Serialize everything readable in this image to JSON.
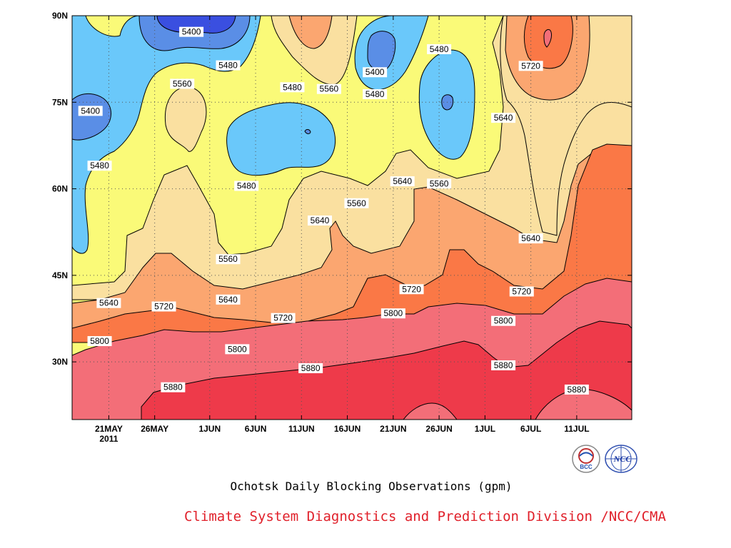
{
  "chart_data": {
    "type": "heatmap",
    "title": "Ochotsk Daily Blocking Observations (gpm)",
    "footer": "Climate System Diagnostics and Prediction Division /NCC/CMA",
    "x_ticks": [
      {
        "label": "21MAY",
        "label2": "2011",
        "date": "2011-05-21"
      },
      {
        "label": "26MAY",
        "date": "2011-05-26"
      },
      {
        "label": "1JUN",
        "date": "2011-06-01"
      },
      {
        "label": "6JUN",
        "date": "2011-06-06"
      },
      {
        "label": "11JUN",
        "date": "2011-06-11"
      },
      {
        "label": "16JUN",
        "date": "2011-06-16"
      },
      {
        "label": "21JUN",
        "date": "2011-06-21"
      },
      {
        "label": "26JUN",
        "date": "2011-06-26"
      },
      {
        "label": "1JUL",
        "date": "2011-07-01"
      },
      {
        "label": "6JUL",
        "date": "2011-07-06"
      },
      {
        "label": "11JUL",
        "date": "2011-07-11"
      }
    ],
    "y_ticks": [
      {
        "label": "30N",
        "value": 30
      },
      {
        "label": "45N",
        "value": 45
      },
      {
        "label": "60N",
        "value": 60
      },
      {
        "label": "75N",
        "value": 75
      },
      {
        "label": "90N",
        "value": 90
      }
    ],
    "ylim": [
      20,
      90
    ],
    "xlim": [
      "2011-05-17",
      "2011-07-17"
    ],
    "grid": true,
    "levels": [
      5400,
      5480,
      5560,
      5640,
      5720,
      5800,
      5880
    ],
    "level_colors": [
      "#3a4fe0",
      "#5a8ee6",
      "#6ac8fa",
      "#fafa78",
      "#fae0a0",
      "#fba670",
      "#fa7846",
      "#f36e78",
      "#ee3a4a"
    ],
    "contour_labels": [
      {
        "text": "5400",
        "date": "2011-05-19",
        "lat": 73.5
      },
      {
        "text": "5400",
        "date": "2011-05-30",
        "lat": 87.2
      },
      {
        "text": "5400",
        "date": "2011-06-19",
        "lat": 80.2
      },
      {
        "text": "5480",
        "date": "2011-05-20",
        "lat": 64.0
      },
      {
        "text": "5480",
        "date": "2011-06-03",
        "lat": 81.4
      },
      {
        "text": "5480",
        "date": "2011-06-10",
        "lat": 77.6
      },
      {
        "text": "5480",
        "date": "2011-06-19",
        "lat": 76.4
      },
      {
        "text": "5480",
        "date": "2011-06-26",
        "lat": 84.2
      },
      {
        "text": "5480",
        "date": "2011-06-05",
        "lat": 60.5
      },
      {
        "text": "5560",
        "date": "2011-05-29",
        "lat": 78.2
      },
      {
        "text": "5560",
        "date": "2011-06-14",
        "lat": 77.3
      },
      {
        "text": "5560",
        "date": "2011-06-26",
        "lat": 60.9
      },
      {
        "text": "5560",
        "date": "2011-06-17",
        "lat": 57.5
      },
      {
        "text": "5560",
        "date": "2011-06-03",
        "lat": 47.8
      },
      {
        "text": "5640",
        "date": "2011-07-03",
        "lat": 72.3
      },
      {
        "text": "5640",
        "date": "2011-06-22",
        "lat": 61.3
      },
      {
        "text": "5640",
        "date": "2011-06-13",
        "lat": 54.5
      },
      {
        "text": "5640",
        "date": "2011-07-06",
        "lat": 51.4
      },
      {
        "text": "5640",
        "date": "2011-06-03",
        "lat": 40.8
      },
      {
        "text": "5640",
        "date": "2011-05-21",
        "lat": 40.2
      },
      {
        "text": "5720",
        "date": "2011-07-06",
        "lat": 81.3
      },
      {
        "text": "5720",
        "date": "2011-05-27",
        "lat": 39.6
      },
      {
        "text": "5720",
        "date": "2011-06-23",
        "lat": 42.6
      },
      {
        "text": "5720",
        "date": "2011-06-09",
        "lat": 37.6
      },
      {
        "text": "5720",
        "date": "2011-07-05",
        "lat": 42.2
      },
      {
        "text": "5800",
        "date": "2011-05-20",
        "lat": 33.6
      },
      {
        "text": "5800",
        "date": "2011-06-04",
        "lat": 32.2
      },
      {
        "text": "5800",
        "date": "2011-06-21",
        "lat": 38.4
      },
      {
        "text": "5800",
        "date": "2011-07-03",
        "lat": 37.1
      },
      {
        "text": "5880",
        "date": "2011-05-28",
        "lat": 25.6
      },
      {
        "text": "5880",
        "date": "2011-06-12",
        "lat": 28.9
      },
      {
        "text": "5880",
        "date": "2011-07-03",
        "lat": 29.4
      },
      {
        "text": "5880",
        "date": "2011-07-11",
        "lat": 25.2
      }
    ]
  },
  "logos": {
    "left": {
      "text": "BCC"
    },
    "right": {
      "text": "NCC"
    }
  }
}
